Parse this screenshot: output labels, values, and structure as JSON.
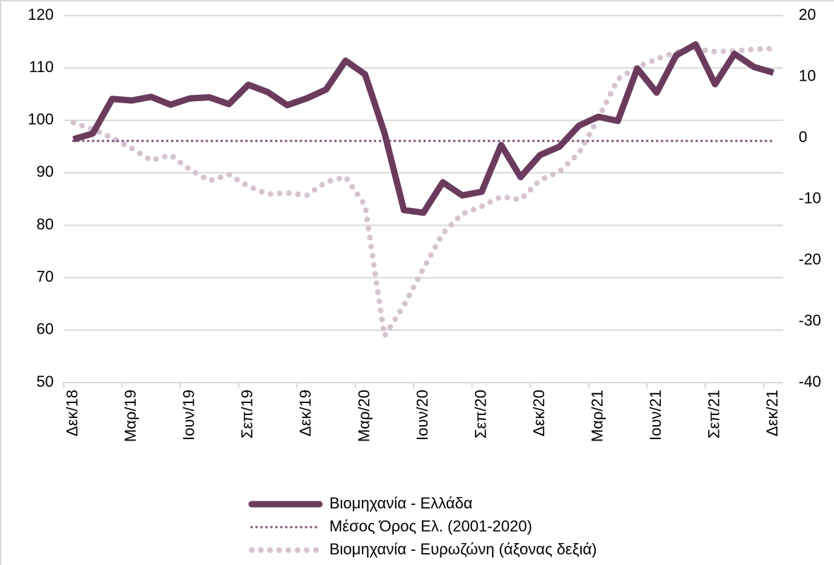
{
  "chart_data": {
    "type": "line",
    "categories": [
      "Δεκ/18",
      null,
      null,
      "Μαρ/19",
      null,
      null,
      "Ιουν/19",
      null,
      null,
      "Σεπ/19",
      null,
      null,
      "Δεκ/19",
      null,
      null,
      "Μαρ/20",
      null,
      null,
      "Ιουν/20",
      null,
      null,
      "Σεπ/20",
      null,
      null,
      "Δεκ/20",
      null,
      null,
      "Μαρ/21",
      null,
      null,
      "Ιουν/21",
      null,
      null,
      "Σεπ/21",
      null,
      null,
      "Δεκ/21"
    ],
    "series": [
      {
        "name": "Βιομηχανία  - Ελλάδα",
        "color": "#6b3b5e",
        "line_style": "solid",
        "values": [
          96.4,
          97.5,
          104.1,
          103.8,
          104.5,
          103,
          104.2,
          104.4,
          103.1,
          106.8,
          105.4,
          102.9,
          104.2,
          105.9,
          111.4,
          108.8,
          97.6,
          82.9,
          82.4,
          88.2,
          85.7,
          86.4,
          95.3,
          89.2,
          93.4,
          95,
          99,
          100.7,
          99.9,
          109.9,
          105.3,
          112.4,
          114.5,
          106.9,
          112.7,
          110.2,
          109.1
        ]
      },
      {
        "name": "Μέσος Όρος Ελ. (2001-2020)",
        "color": "#8b5a80",
        "line_style": "dotted",
        "values": [
          96.1,
          96.1,
          96.1,
          96.1,
          96.1,
          96.1,
          96.1,
          96.1,
          96.1,
          96.1,
          96.1,
          96.1,
          96.1,
          96.1,
          96.1,
          96.1,
          96.1,
          96.1,
          96.1,
          96.1,
          96.1,
          96.1,
          96.1,
          96.1,
          96.1,
          96.1,
          96.1,
          96.1,
          96.1,
          96.1,
          96.1,
          96.1,
          96.1,
          96.1,
          96.1,
          96.1,
          96.1
        ]
      },
      {
        "name": "Βιομηχανία - Ευρωζώνη (άξονας δεξιά)",
        "color": "#d6c3d1",
        "line_style": "dotted-thick",
        "axis": "y2",
        "values": [
          2.5,
          1.4,
          0,
          -1.7,
          -3.7,
          -2.8,
          -5.2,
          -7,
          -6,
          -7.9,
          -9.2,
          -9,
          -9.4,
          -7.2,
          -6.4,
          -11,
          -32.4,
          -27.4,
          -21.4,
          -15.6,
          -12.4,
          -11.2,
          -9.6,
          -10.1,
          -6.9,
          -5.5,
          -2.5,
          3.2,
          9.6,
          11.6,
          12.9,
          14,
          14.5,
          14.1,
          14.2,
          14.5,
          14.6
        ]
      }
    ],
    "ylim": [
      50,
      120
    ],
    "yticks": [
      50,
      60,
      70,
      80,
      90,
      100,
      110,
      120
    ],
    "y2lim": [
      -40,
      20
    ],
    "y2ticks": [
      -40,
      -30,
      -20,
      -10,
      0,
      10,
      20
    ],
    "grid": true,
    "legend": "bottom"
  }
}
